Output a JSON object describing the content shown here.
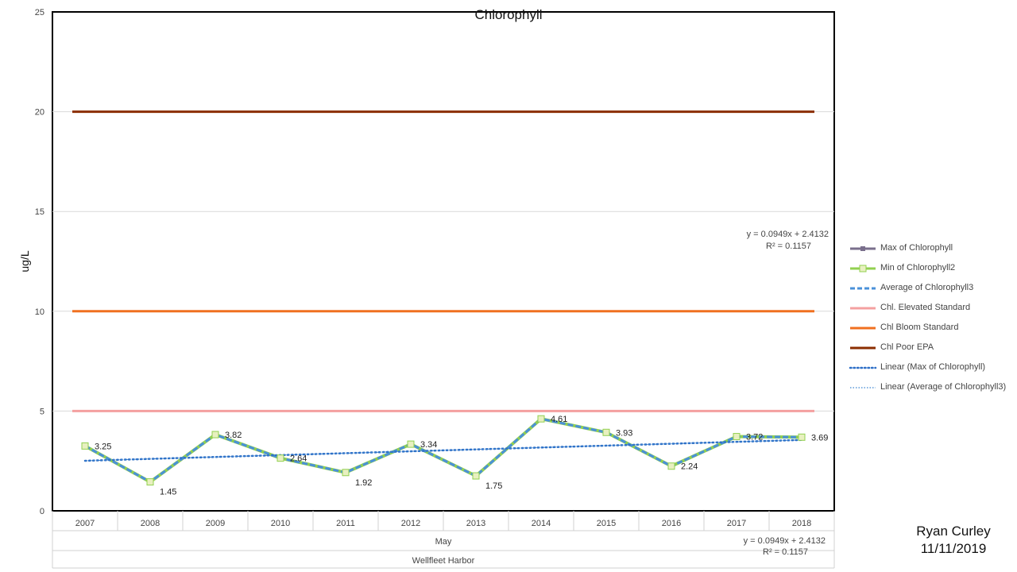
{
  "chart_data": {
    "type": "line",
    "title": "Chlorophyll",
    "ylabel": "ug/L",
    "ylim": [
      0,
      25
    ],
    "yticks": [
      0,
      5,
      10,
      15,
      20,
      25
    ],
    "categories": [
      "2007",
      "2008",
      "2009",
      "2010",
      "2011",
      "2012",
      "2013",
      "2014",
      "2015",
      "2016",
      "2017",
      "2018"
    ],
    "group_labels": [
      "May",
      "Wellfleet Harbor"
    ],
    "series": [
      {
        "name": "Max of Chlorophyll",
        "color": "#7a6f8c",
        "values": [
          3.25,
          1.45,
          3.82,
          2.64,
          1.92,
          3.34,
          1.75,
          4.61,
          3.93,
          2.24,
          3.72,
          3.69
        ]
      },
      {
        "name": "Min of Chlorophyll2",
        "color": "#92d050",
        "values": [
          3.25,
          1.45,
          3.82,
          2.64,
          1.92,
          3.34,
          1.75,
          4.61,
          3.93,
          2.24,
          3.72,
          3.69
        ]
      },
      {
        "name": "Average of Chlorophyll3",
        "color": "#4a90d9",
        "values": [
          3.25,
          1.45,
          3.82,
          2.64,
          1.92,
          3.34,
          1.75,
          4.61,
          3.93,
          2.24,
          3.72,
          3.69
        ]
      },
      {
        "name": "Chl. Elevated Standard",
        "color": "#f4a0a0",
        "values": [
          5,
          5,
          5,
          5,
          5,
          5,
          5,
          5,
          5,
          5,
          5,
          5
        ]
      },
      {
        "name": "Chl Bloom Standard",
        "color": "#f07020",
        "values": [
          10,
          10,
          10,
          10,
          10,
          10,
          10,
          10,
          10,
          10,
          10,
          10
        ]
      },
      {
        "name": "Chl Poor EPA",
        "color": "#8b2e00",
        "values": [
          20,
          20,
          20,
          20,
          20,
          20,
          20,
          20,
          20,
          20,
          20,
          20
        ]
      }
    ],
    "data_labels": [
      "3.25",
      "1.45",
      "3.82",
      "2.64",
      "1.92",
      "3.34",
      "1.75",
      "4.61",
      "3.93",
      "2.24",
      "3.72",
      "3.69"
    ],
    "trendlines": [
      {
        "name": "Linear (Max of Chlorophyll)",
        "color": "#2e6fc7",
        "slope": 0.0949,
        "intercept": 2.4132
      },
      {
        "name": "Linear (Average of Chlorophyll3)",
        "color": "#3a85d0",
        "slope": 0.0949,
        "intercept": 2.4132
      }
    ],
    "equations": [
      {
        "eq": "y = 0.0949x + 2.4132",
        "r2": "R² = 0.1157"
      },
      {
        "eq": "y = 0.0949x + 2.4132",
        "r2": "R² = 0.1157"
      }
    ],
    "legend_position": "right",
    "grid": true
  },
  "signature": {
    "name": "Ryan Curley",
    "date": "11/11/2019"
  }
}
